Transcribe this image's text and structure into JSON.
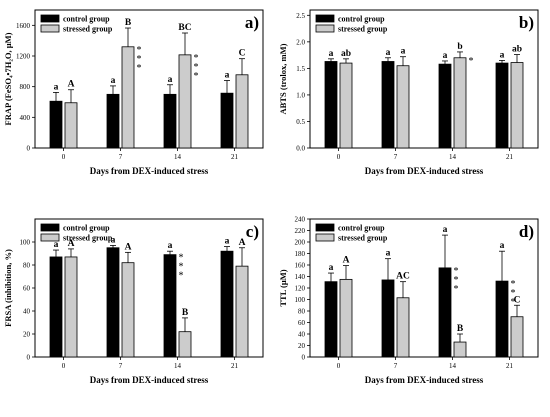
{
  "chart_data": [
    {
      "type": "bar",
      "panel_label": "a)",
      "categories": [
        "0",
        "7",
        "14",
        "21"
      ],
      "series": [
        {
          "name": "control group",
          "color": "#000000",
          "values": [
            610,
            700,
            700,
            715
          ],
          "errors": [
            115,
            110,
            125,
            165
          ],
          "letters": [
            "a",
            "a",
            "a",
            "a"
          ],
          "stars": [
            "",
            "",
            "",
            ""
          ]
        },
        {
          "name": "stressed group",
          "color": "#cccccc",
          "values": [
            590,
            1320,
            1215,
            955
          ],
          "errors": [
            170,
            245,
            285,
            210
          ],
          "letters": [
            "A",
            "B",
            "BC",
            "C"
          ],
          "stars": [
            "",
            "***",
            "***",
            ""
          ]
        }
      ],
      "ylabel": "FRAP (FeSO₄•7H₂O, µM)",
      "xlabel": "Days from DEX-induced stress",
      "ylim": [
        0,
        1800
      ],
      "yticks": [
        "0",
        "400",
        "800",
        "1200",
        "1600"
      ],
      "ytick_values": [
        0,
        400,
        800,
        1200,
        1600
      ],
      "legend": "top-left"
    },
    {
      "type": "bar",
      "panel_label": "b)",
      "categories": [
        "0",
        "7",
        "14",
        "21"
      ],
      "series": [
        {
          "name": "control group",
          "color": "#000000",
          "values": [
            1.63,
            1.63,
            1.58,
            1.6
          ],
          "errors": [
            0.05,
            0.07,
            0.06,
            0.05
          ],
          "letters": [
            "a",
            "a",
            "a",
            "a"
          ],
          "stars": [
            "",
            "",
            "",
            ""
          ]
        },
        {
          "name": "stressed group",
          "color": "#cccccc",
          "values": [
            1.6,
            1.55,
            1.7,
            1.61
          ],
          "errors": [
            0.08,
            0.17,
            0.11,
            0.15
          ],
          "letters": [
            "ab",
            "a",
            "b",
            "ab"
          ],
          "stars": [
            "",
            "",
            "*",
            ""
          ]
        }
      ],
      "ylabel": "ABTS (trolox, mM)",
      "xlabel": "Days from DEX-induced stress",
      "ylim": [
        0,
        2.6
      ],
      "yticks": [
        "0.0",
        "0.5",
        "1.0",
        "1.5",
        "2.0",
        "2.5"
      ],
      "ytick_values": [
        0,
        0.5,
        1.0,
        1.5,
        2.0,
        2.5
      ],
      "legend": "top-left"
    },
    {
      "type": "bar",
      "panel_label": "c)",
      "categories": [
        "0",
        "7",
        "14",
        "21"
      ],
      "series": [
        {
          "name": "control group",
          "color": "#000000",
          "values": [
            87,
            95,
            89,
            92
          ],
          "errors": [
            6,
            2,
            3,
            4
          ],
          "letters": [
            "a",
            "a",
            "a",
            "a"
          ],
          "stars": [
            "",
            "",
            "***",
            ""
          ]
        },
        {
          "name": "stressed group",
          "color": "#cccccc",
          "values": [
            87,
            82,
            22,
            79
          ],
          "errors": [
            7,
            9,
            12,
            16
          ],
          "letters": [
            "A",
            "A",
            "B",
            "A"
          ],
          "stars": [
            "",
            "",
            "",
            ""
          ]
        }
      ],
      "ylabel": "FRSA (inhibition, %)",
      "xlabel": "Days from DEX-induced stress",
      "ylim": [
        0,
        120
      ],
      "yticks": [
        "0",
        "20",
        "40",
        "60",
        "80",
        "100"
      ],
      "ytick_values": [
        0,
        20,
        40,
        60,
        80,
        100
      ],
      "legend": "top-left"
    },
    {
      "type": "bar",
      "panel_label": "d)",
      "categories": [
        "0",
        "7",
        "14",
        "21"
      ],
      "series": [
        {
          "name": "control group",
          "color": "#000000",
          "values": [
            131,
            134,
            155,
            132
          ],
          "errors": [
            15,
            37,
            57,
            52
          ],
          "letters": [
            "a",
            "a",
            "a",
            "a"
          ],
          "stars": [
            "",
            "",
            "***",
            "***"
          ]
        },
        {
          "name": "stressed group",
          "color": "#cccccc",
          "values": [
            135,
            103,
            26,
            70
          ],
          "errors": [
            24,
            28,
            14,
            20
          ],
          "letters": [
            "A",
            "AC",
            "B",
            "C"
          ],
          "stars": [
            "",
            "",
            "",
            ""
          ]
        }
      ],
      "ylabel": "TTL (µM)",
      "xlabel": "Days from DEX-induced stress",
      "ylim": [
        0,
        240
      ],
      "yticks": [
        "0",
        "20",
        "40",
        "60",
        "80",
        "100",
        "120",
        "140",
        "160",
        "180",
        "200",
        "220",
        "240"
      ],
      "ytick_values": [
        0,
        20,
        40,
        60,
        80,
        100,
        120,
        140,
        160,
        180,
        200,
        220,
        240
      ],
      "legend": "top-left"
    }
  ]
}
